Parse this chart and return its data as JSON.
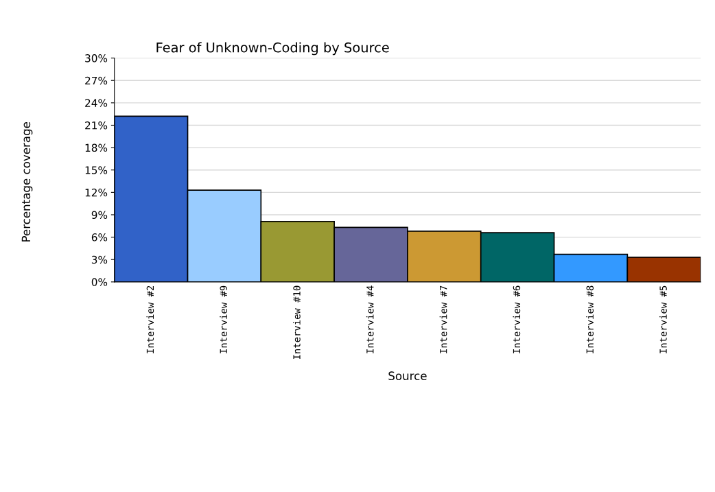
{
  "chart_data": {
    "type": "bar",
    "title": "Fear of Unknown-Coding by Source",
    "xlabel": "Source",
    "ylabel": "Percentage coverage",
    "categories": [
      "Interview #2",
      "Interview #9",
      "Interview #10",
      "Interview #4",
      "Interview #7",
      "Interview #6",
      "Interview #8",
      "Interview #5"
    ],
    "values": [
      22.2,
      12.3,
      8.1,
      7.3,
      6.8,
      6.6,
      3.7,
      3.3
    ],
    "colors": [
      "#3162c8",
      "#99ccff",
      "#999933",
      "#666699",
      "#cc9933",
      "#006666",
      "#3399ff",
      "#993300"
    ],
    "ylim": [
      0,
      30
    ],
    "yticks": [
      {
        "value": 0,
        "label": "0%"
      },
      {
        "value": 3,
        "label": "3%"
      },
      {
        "value": 6,
        "label": "6%"
      },
      {
        "value": 9,
        "label": "9%"
      },
      {
        "value": 12,
        "label": "12%"
      },
      {
        "value": 15,
        "label": "15%"
      },
      {
        "value": 18,
        "label": "18%"
      },
      {
        "value": 21,
        "label": "21%"
      },
      {
        "value": 24,
        "label": "24%"
      },
      {
        "value": 27,
        "label": "27%"
      },
      {
        "value": 30,
        "label": "30%"
      }
    ],
    "grid": "y"
  }
}
